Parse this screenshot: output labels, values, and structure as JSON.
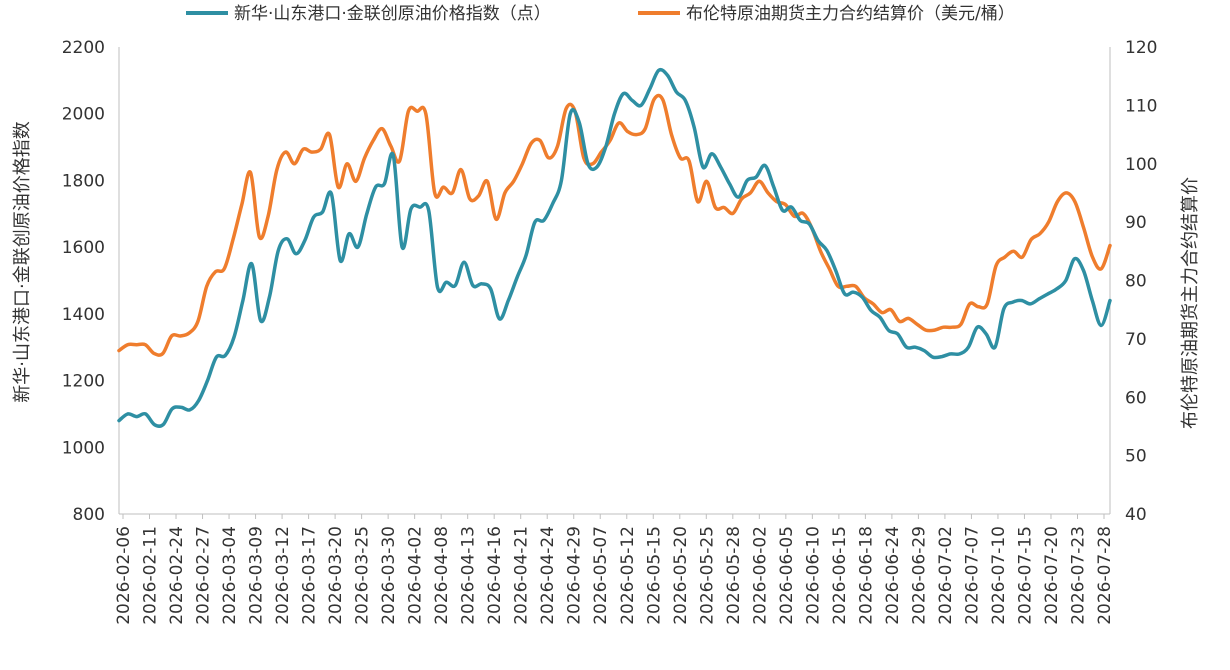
{
  "chart_data": {
    "type": "line",
    "legend_position": "top",
    "grid": false,
    "left_axis": {
      "title": "新华·山东港口·金联创原油价格指数",
      "min": 800,
      "max": 2200,
      "ticks": [
        "800",
        "1000",
        "1200",
        "1400",
        "1600",
        "1800",
        "2000",
        "2200"
      ]
    },
    "right_axis": {
      "title": "布伦特原油期货主力合约结算价",
      "min": 40,
      "max": 120,
      "ticks": [
        "40",
        "50",
        "60",
        "70",
        "80",
        "90",
        "100",
        "110",
        "120"
      ]
    },
    "x_tick_labels": [
      "2026-02-06",
      "2026-02-11",
      "2026-02-24",
      "2026-02-27",
      "2026-03-04",
      "2026-03-09",
      "2026-03-12",
      "2026-03-17",
      "2026-03-20",
      "2026-03-25",
      "2026-03-30",
      "2026-04-02",
      "2026-04-08",
      "2026-04-13",
      "2026-04-16",
      "2026-04-21",
      "2026-04-24",
      "2026-04-29",
      "2026-05-07",
      "2026-05-12",
      "2026-05-15",
      "2026-05-20",
      "2026-05-25",
      "2026-05-28",
      "2026-06-02",
      "2026-06-05",
      "2026-06-10",
      "2026-06-15",
      "2026-06-18",
      "2026-06-24",
      "2026-06-29",
      "2026-07-02",
      "2026-07-07",
      "2026-07-10",
      "2026-07-15",
      "2026-07-20",
      "2026-07-23",
      "2026-07-28"
    ],
    "series": [
      {
        "name": "新华·山东港口·金联创原油价格指数（点）",
        "axis": "left",
        "color": "#2e8fa3",
        "values": [
          1080,
          1100,
          1092,
          1100,
          1068,
          1068,
          1115,
          1120,
          1112,
          1140,
          1200,
          1270,
          1275,
          1330,
          1440,
          1550,
          1380,
          1450,
          1590,
          1625,
          1580,
          1620,
          1690,
          1705,
          1760,
          1560,
          1640,
          1600,
          1700,
          1780,
          1790,
          1875,
          1600,
          1715,
          1720,
          1710,
          1480,
          1495,
          1485,
          1555,
          1485,
          1490,
          1475,
          1385,
          1440,
          1510,
          1575,
          1675,
          1680,
          1730,
          1800,
          2000,
          1975,
          1850,
          1840,
          1900,
          2000,
          2060,
          2040,
          2025,
          2075,
          2130,
          2115,
          2065,
          2040,
          1960,
          1840,
          1880,
          1840,
          1790,
          1750,
          1800,
          1810,
          1845,
          1780,
          1710,
          1720,
          1680,
          1670,
          1620,
          1590,
          1530,
          1460,
          1465,
          1450,
          1410,
          1390,
          1350,
          1340,
          1300,
          1300,
          1290,
          1270,
          1272,
          1280,
          1280,
          1300,
          1360,
          1340,
          1300,
          1415,
          1435,
          1440,
          1430,
          1445,
          1460,
          1475,
          1500,
          1565,
          1530,
          1440,
          1365,
          1440
        ]
      },
      {
        "name": "布伦特原油期货主力合约结算价（美元/桶）",
        "axis": "right",
        "color": "#ef7d2d",
        "values": [
          68,
          69,
          69,
          69,
          67.5,
          67.5,
          70.5,
          70.5,
          71,
          73,
          79,
          81.5,
          82,
          87,
          93,
          98.5,
          87.5,
          91,
          99,
          102,
          100,
          102.5,
          102,
          102.5,
          105,
          96,
          100,
          97,
          101,
          104,
          106,
          103,
          100.5,
          109,
          109,
          108.5,
          95,
          96,
          95,
          99,
          94,
          94.5,
          97,
          90.5,
          95,
          97,
          100,
          103.5,
          104,
          101,
          103,
          109.5,
          109,
          101,
          100,
          102,
          104,
          107,
          105.5,
          105,
          106,
          111,
          111,
          105,
          101,
          100.5,
          93.5,
          97,
          92.5,
          92.5,
          91.5,
          94,
          95,
          97,
          95,
          93.5,
          93,
          91,
          91.5,
          89,
          85,
          82,
          79,
          79,
          79,
          77,
          76,
          74.5,
          75,
          73,
          73.5,
          72.5,
          71.5,
          71.5,
          72,
          72,
          72.5,
          76,
          75.5,
          76,
          82.5,
          84,
          85,
          84,
          87,
          88,
          90,
          93.5,
          95,
          93.5,
          89,
          84,
          82,
          86
        ]
      }
    ]
  }
}
